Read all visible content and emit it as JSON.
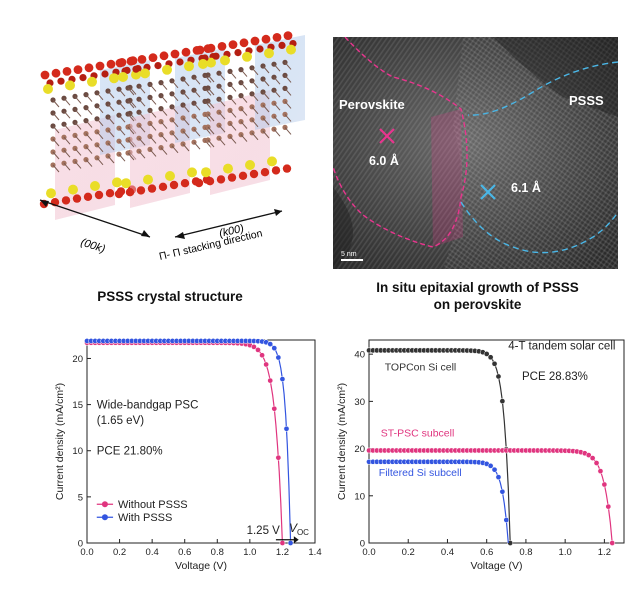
{
  "figure": {
    "panel_a": {
      "axis_labels": {
        "a1": "(00k)",
        "a2": "(k00)"
      },
      "stacking_label": "Π- Π stacking direction",
      "caption": "PSSS crystal structure"
    },
    "panel_b": {
      "label_perovskite": "Perovskite",
      "label_psss": "PSSS",
      "spacing_left": "6.0 Å",
      "spacing_right": "6.1 Å",
      "scale_bar": "5 nm",
      "caption_line1": "In situ epitaxial growth of PSSS",
      "caption_line2": "on perovskite",
      "colors": {
        "perovskite": "#e8358e",
        "psss": "#4ab6e6"
      }
    }
  },
  "chart_data": [
    {
      "type": "line",
      "xlabel": "Voltage (V)",
      "ylabel": "Current density (mA/cm²)",
      "xlim": [
        0.0,
        1.4
      ],
      "ylim": [
        0,
        22
      ],
      "xticks": [
        "0.0",
        "0.2",
        "0.4",
        "0.6",
        "0.8",
        "1.0",
        "1.2",
        "1.4"
      ],
      "yticks": [
        "0",
        "5",
        "10",
        "15",
        "20"
      ],
      "annotations": {
        "device": "Wide-bandgap PSC",
        "bandgap": "(1.65 eV)",
        "pce": "PCE 21.80%",
        "voc_shift": "1.25 V",
        "voc_symbol": "V",
        "voc_sub": "OC"
      },
      "series": [
        {
          "name": "Without PSSS",
          "color": "#e0357f",
          "jsc": 21.7,
          "voc": 1.2,
          "vmp": 1.0,
          "jmp": 18.9
        },
        {
          "name": "With PSSS",
          "color": "#3355e0",
          "jsc": 21.9,
          "voc": 1.25,
          "vmp": 1.06,
          "jmp": 20.1
        }
      ]
    },
    {
      "type": "line",
      "xlabel": "Voltage (V)",
      "ylabel": "Current density (mA/cm²)",
      "xlim": [
        0.0,
        1.3
      ],
      "ylim": [
        0,
        43
      ],
      "xticks": [
        "0.0",
        "0.2",
        "0.4",
        "0.6",
        "0.8",
        "1.0",
        "1.2"
      ],
      "yticks": [
        "0",
        "10",
        "20",
        "30",
        "40"
      ],
      "annotations": {
        "title": "4-T tandem solar cell",
        "pce": "PCE 28.83%"
      },
      "series": [
        {
          "name": "TOPCon Si cell",
          "color": "#333333",
          "jsc": 40.8,
          "voc": 0.72
        },
        {
          "name": "ST-PSC subcell",
          "color": "#e0357f",
          "jsc": 19.6,
          "voc": 1.24
        },
        {
          "name": "Filtered Si subcell",
          "color": "#3355e0",
          "jsc": 17.2,
          "voc": 0.71
        }
      ]
    }
  ]
}
